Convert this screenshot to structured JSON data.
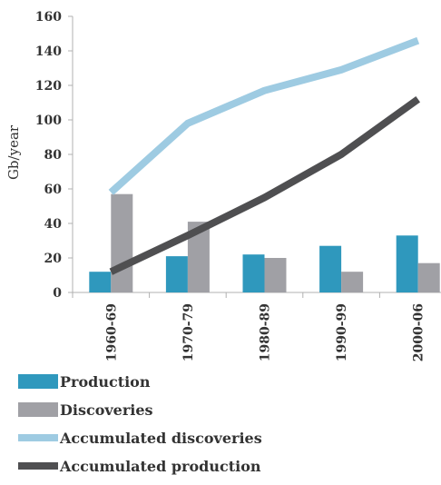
{
  "chart_data": {
    "type": "bar",
    "categories": [
      "1960-69",
      "1970-79",
      "1980-89",
      "1990-99",
      "2000-06"
    ],
    "series": [
      {
        "name": "Production",
        "type": "bar",
        "color": "#2f98bd",
        "values": [
          12,
          21,
          22,
          27,
          33
        ]
      },
      {
        "name": "Discoveries",
        "type": "bar",
        "color": "#a0a0a5",
        "values": [
          57,
          41,
          20,
          12,
          17
        ]
      },
      {
        "name": "Accumulated discoveries",
        "type": "line",
        "color": "#9ecbe2",
        "values": [
          58,
          98,
          117,
          129,
          146
        ]
      },
      {
        "name": "Accumulated production",
        "type": "line",
        "color": "#4f4f51",
        "values": [
          12,
          33,
          55,
          80,
          112
        ]
      }
    ],
    "ylabel": "Gb/year",
    "ylim": [
      0,
      160
    ],
    "yticks": [
      0,
      20,
      40,
      60,
      80,
      100,
      120,
      140,
      160
    ],
    "grid": false,
    "legend_position": "bottom-left"
  }
}
